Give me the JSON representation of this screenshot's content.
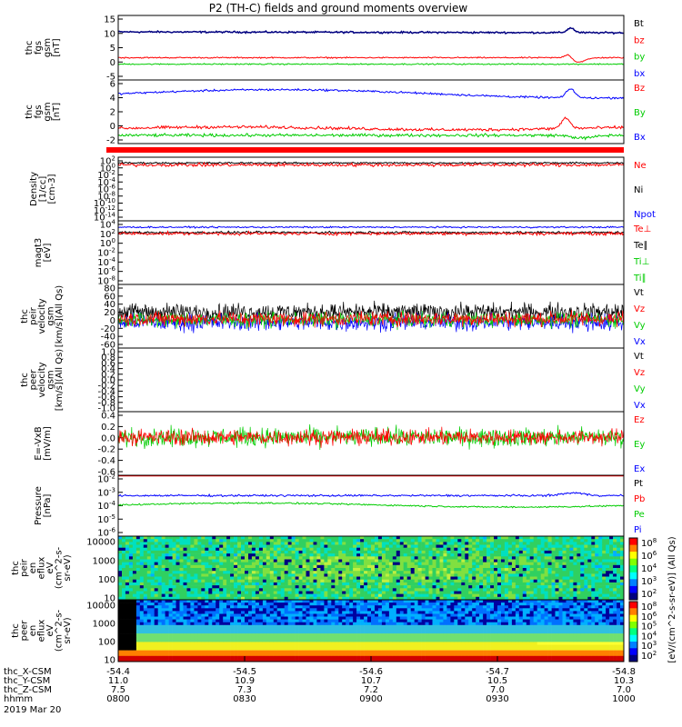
{
  "title": "P2 (TH-C) fields and ground moments overview",
  "colors": {
    "black": "#000000",
    "red": "#ff0000",
    "green": "#00cc00",
    "blue": "#0000ff",
    "navy": "#000080",
    "cyan": "#00ffff",
    "yellow": "#ffff00"
  },
  "chart_data": {
    "type": "line",
    "xaxis": {
      "rows": [
        {
          "label": "thc_X-CSM",
          "values": [
            "-54.4",
            "-54.5",
            "-54.6",
            "-54.7",
            "-54.8"
          ]
        },
        {
          "label": "thc_Y-CSM",
          "values": [
            "11.0",
            "10.9",
            "10.7",
            "10.5",
            "10.3"
          ]
        },
        {
          "label": "thc_Z-CSM",
          "values": [
            "7.5",
            "7.3",
            "7.2",
            "7.0",
            "7.0"
          ]
        },
        {
          "label": "hhmm",
          "values": [
            "0800",
            "0830",
            "0900",
            "0930",
            "1000"
          ]
        }
      ],
      "date": "2019 Mar 20"
    },
    "panels": [
      {
        "id": "fgs_gsm",
        "ylabel": [
          "thc",
          "fgs",
          "gsm",
          "[nT]"
        ],
        "ticks": [
          "15",
          "10",
          "5",
          "0",
          "-5"
        ],
        "ylim": [
          -6,
          16
        ],
        "legend": [
          {
            "t": "Bt",
            "c": "black"
          },
          {
            "t": "bz",
            "c": "red"
          },
          {
            "t": "by",
            "c": "green"
          },
          {
            "t": "bx",
            "c": "blue"
          }
        ]
      },
      {
        "id": "fgs_gsm2",
        "ylabel": [
          "thc",
          "fgs",
          "gsm",
          "[nT]"
        ],
        "ticks": [
          "6",
          "4",
          "2",
          "0",
          "-2"
        ],
        "ylim": [
          -2.8,
          6.4
        ],
        "legend": [
          {
            "t": "Bz",
            "c": "red"
          },
          {
            "t": "By",
            "c": "green"
          },
          {
            "t": "Bx",
            "c": "blue"
          }
        ]
      },
      {
        "id": "density",
        "ylabel": [
          "Density",
          "[1/cc]",
          "[cm-3]"
        ],
        "ticks": [
          "10^2",
          "10^0",
          "10^-2",
          "10^-4",
          "10^-6",
          "10^-8",
          "10^-10",
          "10^-12",
          "10^-14"
        ],
        "ylim": [
          -14,
          2.6
        ],
        "legend": [
          {
            "t": "Ne",
            "c": "red"
          },
          {
            "t": "Ni",
            "c": "black"
          },
          {
            "t": "Npot",
            "c": "blue"
          }
        ]
      },
      {
        "id": "temp",
        "ylabel": [
          "magt3",
          "[eV]"
        ],
        "ticks": [
          "10^4",
          "10^2",
          "10^0",
          "10^-2",
          "10^-4",
          "10^-6",
          "10^-8"
        ],
        "ylim": [
          -8,
          4
        ],
        "legend": [
          {
            "t": "Te⊥",
            "c": "red"
          },
          {
            "t": "Te∥",
            "c": "black"
          },
          {
            "t": "Ti⊥",
            "c": "green"
          },
          {
            "t": "Ti∥",
            "c": "green"
          }
        ]
      },
      {
        "id": "peir_vel",
        "ylabel": [
          "thc",
          "peir",
          "velocity",
          "gsm",
          "[km/s](All Qs)"
        ],
        "ticks": [
          "80",
          "60",
          "40",
          "20",
          "0",
          "-20",
          "-40",
          "-60"
        ],
        "ylim": [
          -64,
          84
        ],
        "legend": [
          {
            "t": "Vt",
            "c": "black"
          },
          {
            "t": "Vz",
            "c": "red"
          },
          {
            "t": "Vy",
            "c": "green"
          },
          {
            "t": "Vx",
            "c": "blue"
          }
        ]
      },
      {
        "id": "peer_vel",
        "ylabel": [
          "thc",
          "peer",
          "velocity",
          "gsm",
          "[km/s](All Qs)"
        ],
        "ticks": [
          "1.0",
          "0.8",
          "0.6",
          "0.4",
          "0.2",
          "0.0",
          "-0.2",
          "-0.4",
          "-0.6",
          "-0.8",
          "-1.0"
        ],
        "ylim": [
          -1,
          1
        ],
        "legend": [
          {
            "t": "Vt",
            "c": "black"
          },
          {
            "t": "Vz",
            "c": "red"
          },
          {
            "t": "Vy",
            "c": "green"
          },
          {
            "t": "Vx",
            "c": "blue"
          }
        ]
      },
      {
        "id": "efield",
        "ylabel": [
          "E=-VxB",
          "[mV/m]"
        ],
        "ticks": [
          "0.4",
          "0.2",
          "0.0",
          "-0.2",
          "-0.4",
          "-0.6"
        ],
        "ylim": [
          -0.65,
          0.52
        ],
        "legend": [
          {
            "t": "Ez",
            "c": "red"
          },
          {
            "t": "Ey",
            "c": "green"
          },
          {
            "t": "Ex",
            "c": "blue"
          }
        ]
      },
      {
        "id": "pressure",
        "ylabel": [
          "Pressure",
          "[nPa]"
        ],
        "ticks": [
          "10^-2",
          "10^-3",
          "10^-4",
          "10^-5",
          "10^-6"
        ],
        "ylim": [
          -6.3,
          -1.8
        ],
        "legend": [
          {
            "t": "Pt",
            "c": "black"
          },
          {
            "t": "Pb",
            "c": "red"
          },
          {
            "t": "Pe",
            "c": "green"
          },
          {
            "t": "Pi",
            "c": "blue"
          }
        ]
      },
      {
        "id": "peir_spec",
        "ylabel": [
          "thc",
          "peir",
          "en",
          "eflux",
          "eV",
          "(cm^2-s-",
          "sr-eV)"
        ],
        "ticks": [
          "10000",
          "1000",
          "100",
          "10"
        ],
        "ylim": [
          0.9,
          4.3
        ]
      },
      {
        "id": "peer_spec",
        "ylabel": [
          "thc",
          "peer",
          "en",
          "eflux",
          "eV",
          "(cm^2-s-",
          "sr-eV)"
        ],
        "ticks": [
          "10000",
          "1000",
          "100",
          "10"
        ],
        "ylim": [
          0.9,
          4.3
        ]
      }
    ],
    "colorbar": {
      "label": "[eV/(cm^2-s-sr-eV)] (All Qs)",
      "ticks1": [
        "10^8",
        "10^6",
        "10^4",
        "10^3",
        "10^2"
      ],
      "ticks2": [
        "10^8",
        "10^6",
        "10^5",
        "10^4",
        "10^3",
        "10^2"
      ]
    }
  }
}
